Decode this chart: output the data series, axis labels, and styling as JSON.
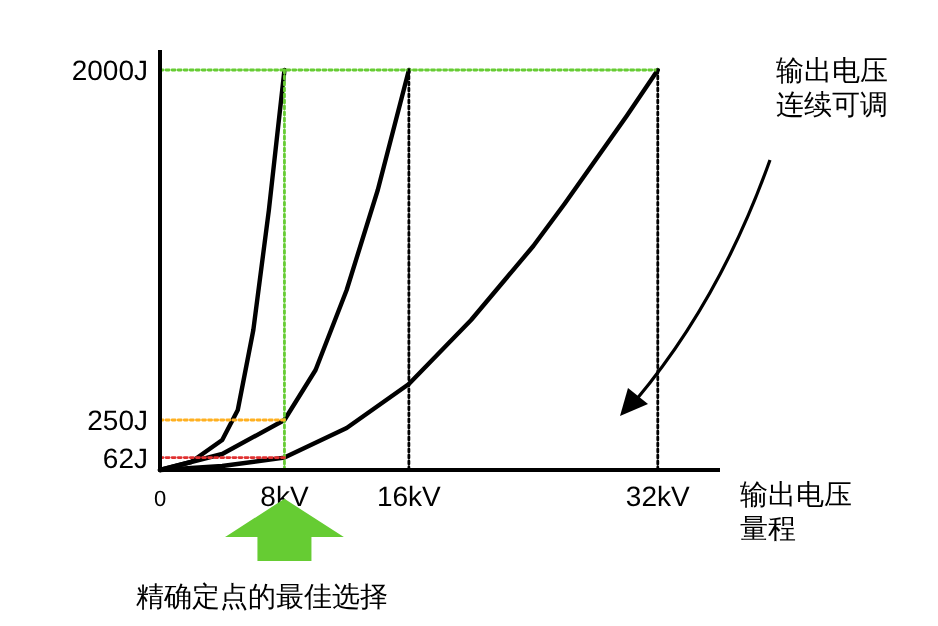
{
  "chart_data": {
    "type": "line",
    "xlabel": "输出电压量程",
    "xlim": [
      0,
      36
    ],
    "ylim": [
      0,
      2100
    ],
    "xticks": [
      {
        "value": 0,
        "label": "0"
      },
      {
        "value": 8,
        "label": "8kV"
      },
      {
        "value": 16,
        "label": "16kV"
      },
      {
        "value": 32,
        "label": "32kV"
      }
    ],
    "yticks": [
      {
        "value": 62,
        "label": "62J"
      },
      {
        "value": 250,
        "label": "250J"
      },
      {
        "value": 2000,
        "label": "2000J"
      }
    ],
    "grid": false,
    "marker": "none",
    "annotations": [
      "输出电压连续可调",
      "精确定点的最佳选择"
    ],
    "series": [
      {
        "color": "#000000",
        "line_style": "solid",
        "x": [
          0,
          2,
          4,
          5,
          6,
          7,
          8
        ],
        "values": [
          0,
          40,
          150,
          300,
          700,
          1300,
          2000
        ]
      },
      {
        "color": "#000000",
        "line_style": "solid",
        "x": [
          0,
          4,
          8,
          10,
          12,
          14,
          16
        ],
        "values": [
          0,
          80,
          250,
          500,
          900,
          1400,
          2000
        ]
      },
      {
        "color": "#000000",
        "line_style": "solid",
        "x": [
          0,
          4,
          8,
          12,
          16,
          20,
          24,
          26,
          28,
          30,
          32
        ],
        "values": [
          0,
          20,
          62,
          210,
          430,
          750,
          1120,
          1330,
          1550,
          1770,
          2000
        ]
      },
      {
        "color": "#66cc33",
        "line_style": "dotted",
        "x": [
          0,
          32
        ],
        "values": [
          2000,
          2000
        ]
      },
      {
        "color": "#66cc33",
        "line_style": "dotted",
        "x": [
          8,
          8
        ],
        "values": [
          0,
          2000
        ]
      },
      {
        "color": "#000000",
        "line_style": "dotted",
        "x": [
          16,
          16
        ],
        "values": [
          0,
          2000
        ]
      },
      {
        "color": "#000000",
        "line_style": "dotted",
        "x": [
          32,
          32
        ],
        "values": [
          0,
          2000
        ]
      },
      {
        "color": "#ffb020",
        "line_style": "dotted",
        "x": [
          0,
          8
        ],
        "values": [
          250,
          250
        ]
      },
      {
        "color": "#e03030",
        "line_style": "dotted",
        "x": [
          0,
          8
        ],
        "values": [
          62,
          62
        ]
      }
    ]
  }
}
